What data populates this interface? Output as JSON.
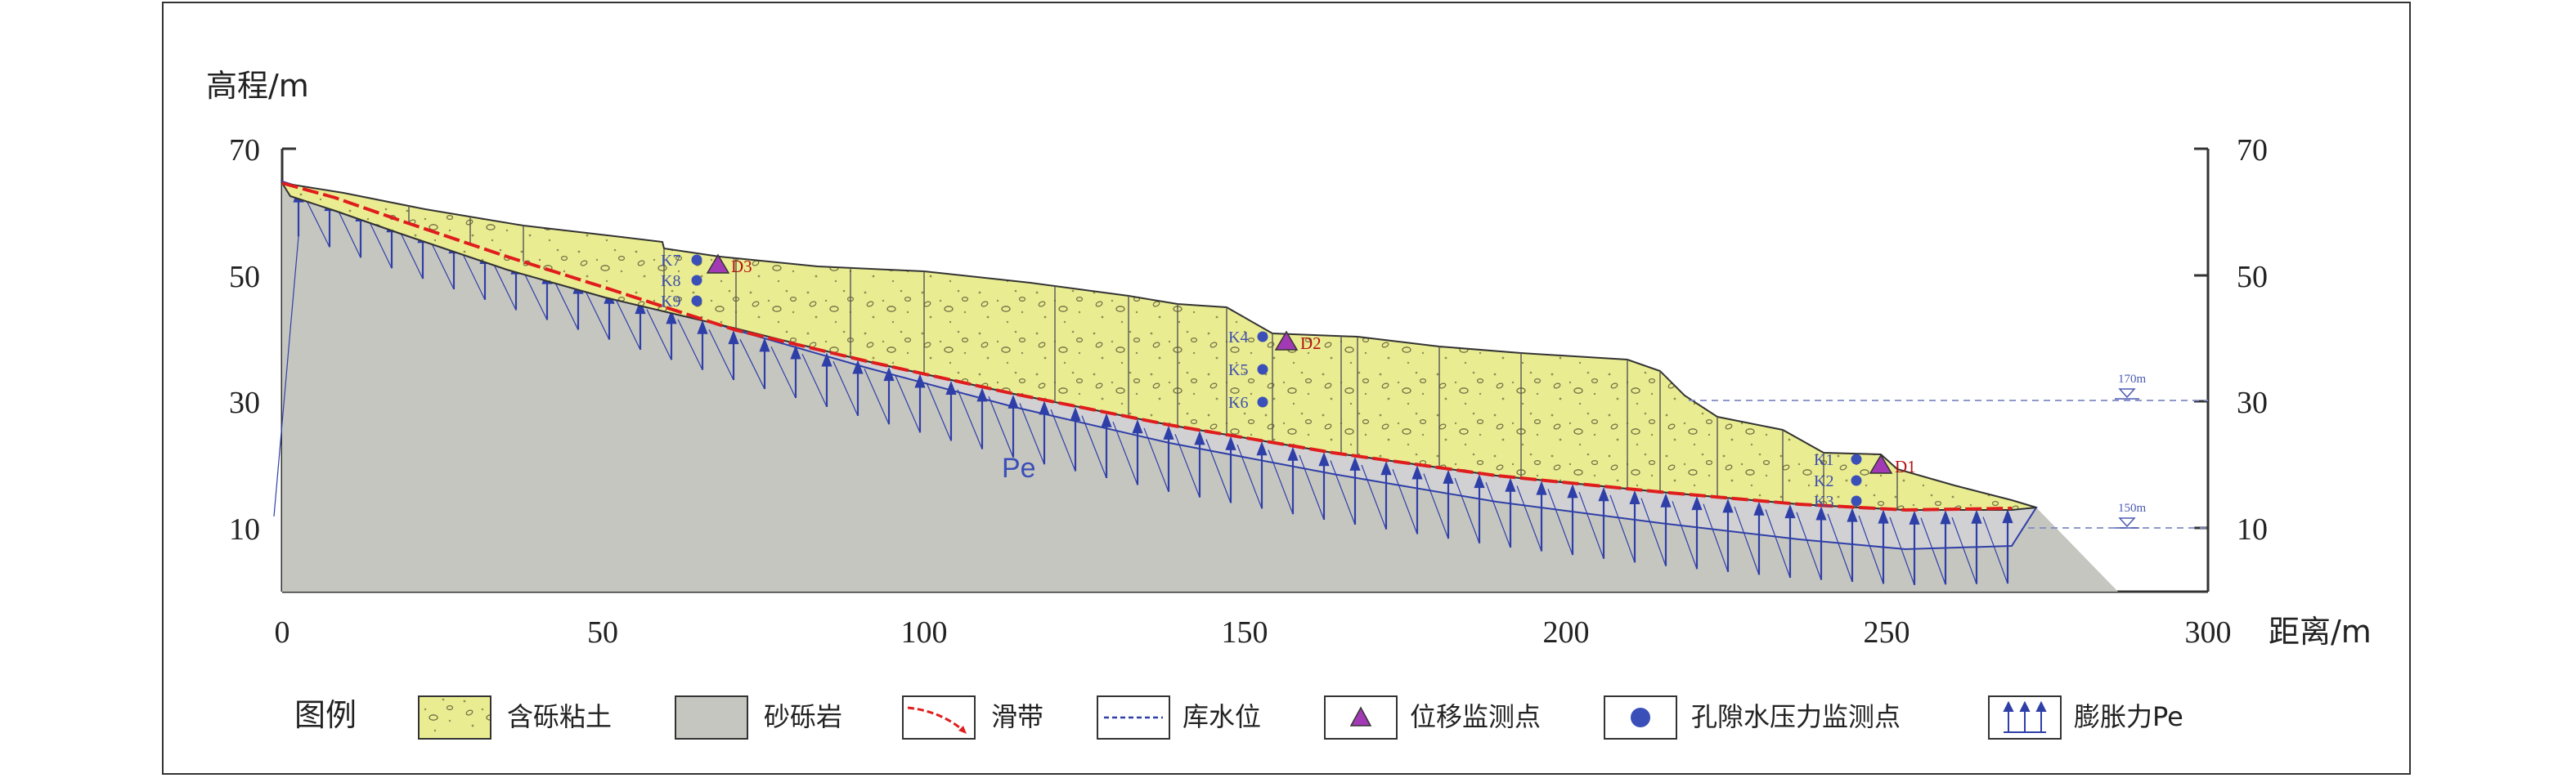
{
  "axes": {
    "y_title": "高程/m",
    "x_title": "距离/m",
    "y_ticks": [
      "70",
      "50",
      "30",
      "10"
    ],
    "x_ticks": [
      "0",
      "50",
      "100",
      "150",
      "200",
      "250",
      "300"
    ]
  },
  "annotations": {
    "pe": "Pe",
    "water_levels": [
      "170m",
      "150m"
    ]
  },
  "monitoring_points": {
    "pore_pressure": [
      "K1",
      "K2",
      "K3",
      "K4",
      "K5",
      "K6",
      "K7",
      "K8",
      "K9"
    ],
    "displacement": [
      "D1",
      "D2",
      "D3"
    ]
  },
  "legend": {
    "title": "图例",
    "items": [
      {
        "label": "含砾粘土",
        "icon": "gravelly-clay-swatch"
      },
      {
        "label": "砂砾岩",
        "icon": "sandy-conglomerate-swatch"
      },
      {
        "label": "滑带",
        "icon": "slip-zone-line"
      },
      {
        "label": "库水位",
        "icon": "reservoir-level-line"
      },
      {
        "label": "位移监测点",
        "icon": "triangle-marker"
      },
      {
        "label": "孔隙水压力监测点",
        "icon": "circle-marker"
      },
      {
        "label": "膨胀力Pe",
        "icon": "arrows-swatch"
      }
    ]
  },
  "colors": {
    "clay": "#eaec92",
    "rock": "#c6c6c0",
    "slip": "#e01d1d",
    "water": "#2f3fa8",
    "triangle": "#a33ab5",
    "circle": "#3a4fb8"
  }
}
